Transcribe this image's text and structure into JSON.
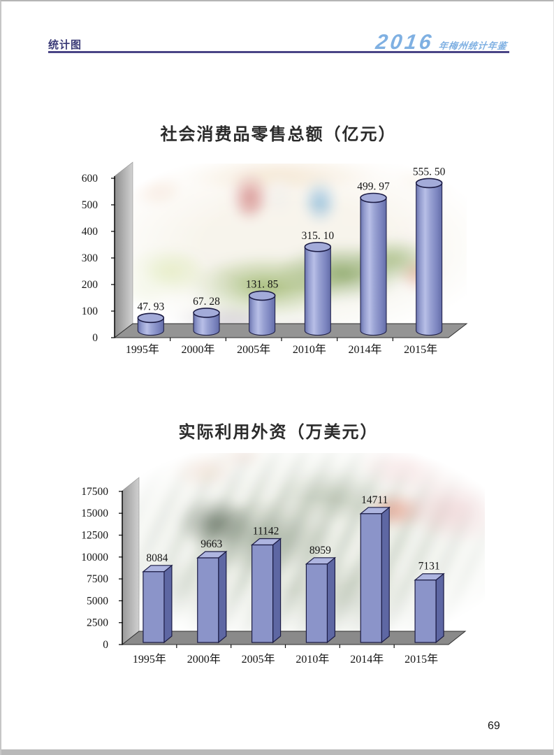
{
  "page": {
    "number": "69"
  },
  "header": {
    "section_label": "统计图",
    "edition_year": "2016",
    "yearbook_title": "年梅州统计年鉴",
    "accent_color": "#7fb0e2",
    "rule_color": "#4a4586"
  },
  "chart_data": [
    {
      "type": "bar",
      "variant": "3d-cylinder",
      "title": "社会消费品零售总额（亿元）",
      "categories": [
        "1995年",
        "2000年",
        "2005年",
        "2010年",
        "2014年",
        "2015年"
      ],
      "values": [
        47.93,
        67.28,
        131.85,
        315.1,
        499.97,
        555.5
      ],
      "value_labels": [
        "47. 93",
        "67. 28",
        "131. 85",
        "315. 10",
        "499. 97",
        "555. 50"
      ],
      "ylim": [
        0,
        600
      ],
      "yticks": [
        0,
        100,
        200,
        300,
        400,
        500,
        600
      ],
      "xlabel": "",
      "ylabel": "",
      "legend": "none",
      "grid": false,
      "bar_color": "#8b94c9",
      "bar_top_color": "#a3abd9",
      "outline_color": "#1b1b44",
      "floor_color": "#949494",
      "background_photo": "supermarket-produce-scene"
    },
    {
      "type": "bar",
      "variant": "3d-box",
      "title": "实际利用外资（万美元）",
      "categories": [
        "1995年",
        "2000年",
        "2005年",
        "2010年",
        "2014年",
        "2015年"
      ],
      "values": [
        8084,
        9663,
        11142,
        8959,
        14711,
        7131
      ],
      "value_labels": [
        "8084",
        "9663",
        "11142",
        "8959",
        "14711",
        "7131"
      ],
      "ylim": [
        0,
        17500
      ],
      "yticks": [
        0,
        2500,
        5000,
        7500,
        10000,
        12500,
        15000,
        17500
      ],
      "xlabel": "",
      "ylabel": "",
      "legend": "none",
      "grid": false,
      "bar_color": "#8b94c9",
      "bar_side_color": "#5e67a3",
      "bar_top_color": "#aeb5e0",
      "outline_color": "#1b1b44",
      "floor_color": "#8a8a8a",
      "background_photo": "us-dollar-rmb-banknotes"
    }
  ]
}
